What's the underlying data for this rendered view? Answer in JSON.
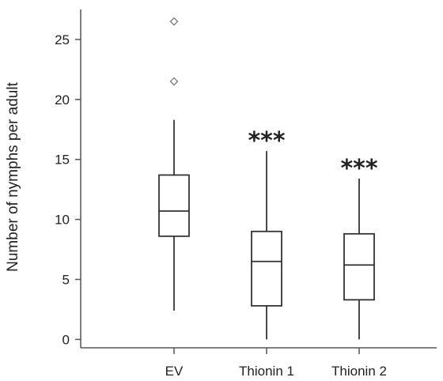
{
  "chart_data": {
    "type": "box",
    "title": "",
    "xlabel": "",
    "ylabel": "Number of nymphs per adult",
    "ylim": [
      -0.7,
      27.5
    ],
    "yticks": [
      0,
      5,
      10,
      15,
      20,
      25
    ],
    "categories": [
      "EV",
      "Thionin 1",
      "Thionin 2"
    ],
    "boxes": [
      {
        "category": "EV",
        "whisker_low": 2.4,
        "q1": 8.6,
        "median": 10.7,
        "q3": 13.7,
        "whisker_high": 18.3,
        "outliers": [
          21.5,
          26.5
        ],
        "significance": ""
      },
      {
        "category": "Thionin 1",
        "whisker_low": 0,
        "q1": 2.8,
        "median": 6.5,
        "q3": 9.0,
        "whisker_high": 15.7,
        "outliers": [],
        "significance": "***"
      },
      {
        "category": "Thionin 2",
        "whisker_low": 0,
        "q1": 3.3,
        "median": 6.2,
        "q3": 8.8,
        "whisker_high": 13.4,
        "outliers": [],
        "significance": "***"
      }
    ],
    "grid": false,
    "legend": "none"
  }
}
